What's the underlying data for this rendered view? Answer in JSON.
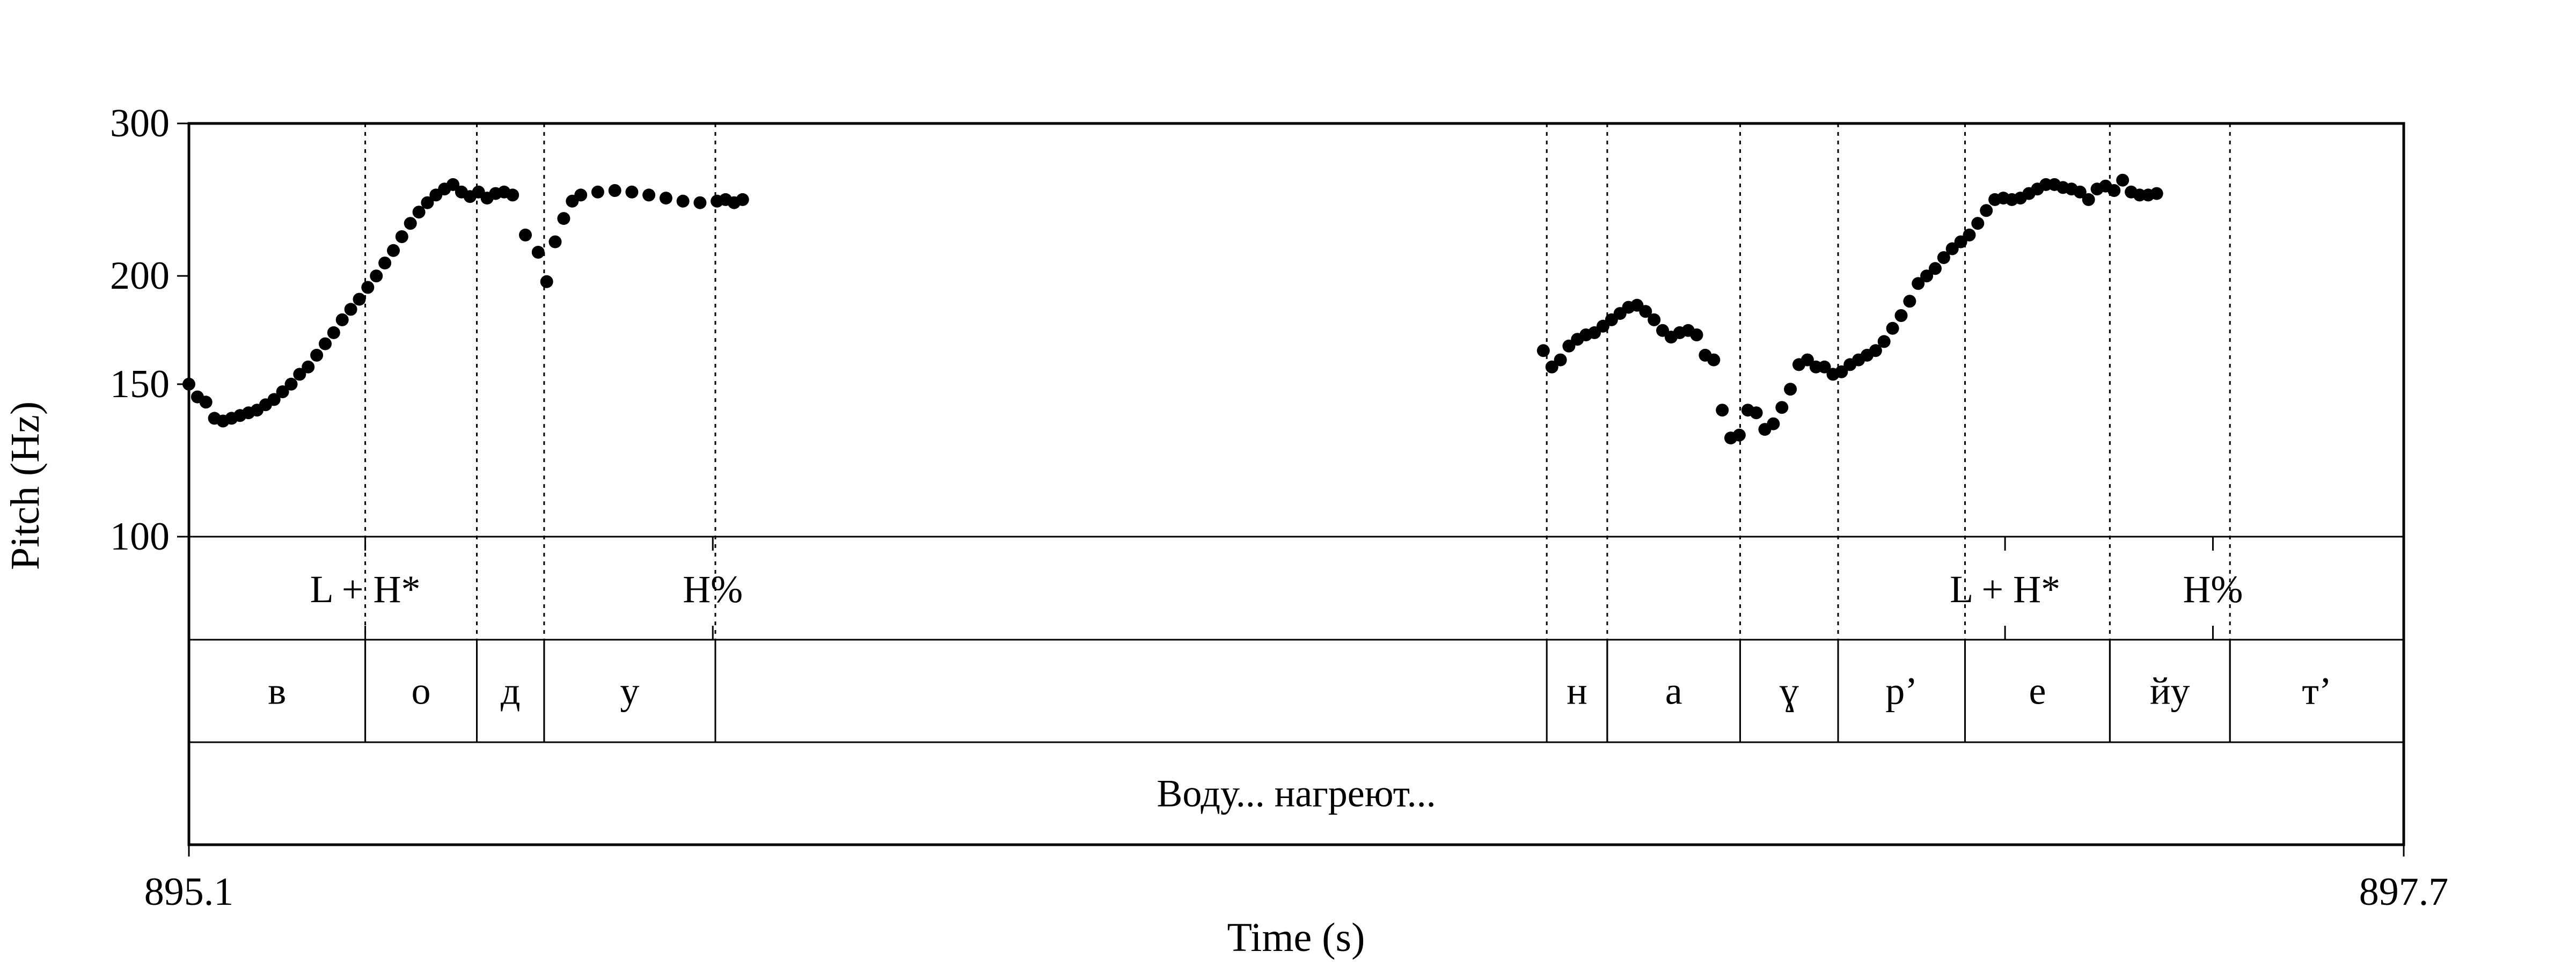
{
  "chart_data": {
    "type": "scatter",
    "xlabel": "Time (s)",
    "ylabel": "Pitch (Hz)",
    "xlim": [
      895.1,
      897.7
    ],
    "ylim": [
      100,
      300
    ],
    "y_scale": "log",
    "x_tick_labels": [
      "895.1",
      "897.7"
    ],
    "y_tick_labels": [
      "100",
      "150",
      "200",
      "300"
    ],
    "y_ticks": [
      100,
      150,
      200,
      300
    ],
    "grid": false,
    "series": [
      {
        "points": [
          [
            895.1,
            150
          ],
          [
            895.11,
            145
          ],
          [
            895.12,
            143
          ],
          [
            895.13,
            137
          ],
          [
            895.14,
            136
          ],
          [
            895.15,
            137
          ],
          [
            895.16,
            138
          ],
          [
            895.17,
            139
          ],
          [
            895.18,
            140
          ],
          [
            895.19,
            142
          ],
          [
            895.2,
            144
          ],
          [
            895.21,
            147
          ],
          [
            895.22,
            150
          ],
          [
            895.23,
            154
          ],
          [
            895.24,
            157
          ],
          [
            895.25,
            162
          ],
          [
            895.26,
            167
          ],
          [
            895.27,
            172
          ],
          [
            895.28,
            178
          ],
          [
            895.29,
            183
          ],
          [
            895.3,
            188
          ],
          [
            895.31,
            194
          ],
          [
            895.32,
            200
          ],
          [
            895.33,
            207
          ],
          [
            895.34,
            214
          ],
          [
            895.35,
            222
          ],
          [
            895.36,
            230
          ],
          [
            895.37,
            237
          ],
          [
            895.38,
            243
          ],
          [
            895.39,
            248
          ],
          [
            895.4,
            252
          ],
          [
            895.41,
            255
          ],
          [
            895.42,
            250
          ],
          [
            895.43,
            247
          ],
          [
            895.44,
            250
          ],
          [
            895.45,
            246
          ],
          [
            895.46,
            249
          ],
          [
            895.47,
            250
          ],
          [
            895.48,
            248
          ],
          [
            895.495,
            223
          ],
          [
            895.51,
            213
          ],
          [
            895.52,
            197
          ],
          [
            895.53,
            219
          ],
          [
            895.54,
            233
          ],
          [
            895.55,
            244
          ],
          [
            895.56,
            248
          ],
          [
            895.58,
            250
          ],
          [
            895.6,
            251
          ],
          [
            895.62,
            250
          ],
          [
            895.64,
            248
          ],
          [
            895.66,
            246
          ],
          [
            895.68,
            244
          ],
          [
            895.7,
            243
          ],
          [
            895.72,
            244
          ],
          [
            895.73,
            245
          ],
          [
            895.74,
            243
          ],
          [
            895.75,
            245
          ],
          [
            896.69,
            164
          ],
          [
            896.7,
            157
          ],
          [
            896.71,
            160
          ],
          [
            896.72,
            166
          ],
          [
            896.73,
            169
          ],
          [
            896.74,
            171
          ],
          [
            896.75,
            172
          ],
          [
            896.76,
            175
          ],
          [
            896.77,
            178
          ],
          [
            896.78,
            181
          ],
          [
            896.79,
            184
          ],
          [
            896.8,
            185
          ],
          [
            896.81,
            182
          ],
          [
            896.82,
            178
          ],
          [
            896.83,
            173
          ],
          [
            896.84,
            170
          ],
          [
            896.85,
            172
          ],
          [
            896.86,
            173
          ],
          [
            896.87,
            171
          ],
          [
            896.88,
            162
          ],
          [
            896.89,
            160
          ],
          [
            896.9,
            140
          ],
          [
            896.91,
            130
          ],
          [
            896.92,
            131
          ],
          [
            896.93,
            140
          ],
          [
            896.94,
            139
          ],
          [
            896.95,
            133
          ],
          [
            896.96,
            135
          ],
          [
            896.97,
            141
          ],
          [
            896.98,
            148
          ],
          [
            896.99,
            158
          ],
          [
            897.0,
            160
          ],
          [
            897.01,
            157
          ],
          [
            897.02,
            157
          ],
          [
            897.03,
            154
          ],
          [
            897.04,
            155
          ],
          [
            897.05,
            158
          ],
          [
            897.06,
            160
          ],
          [
            897.07,
            162
          ],
          [
            897.08,
            164
          ],
          [
            897.09,
            168
          ],
          [
            897.1,
            174
          ],
          [
            897.11,
            180
          ],
          [
            897.12,
            187
          ],
          [
            897.13,
            196
          ],
          [
            897.14,
            200
          ],
          [
            897.15,
            204
          ],
          [
            897.16,
            210
          ],
          [
            897.17,
            215
          ],
          [
            897.18,
            219
          ],
          [
            897.19,
            223
          ],
          [
            897.2,
            230
          ],
          [
            897.21,
            238
          ],
          [
            897.22,
            245
          ],
          [
            897.23,
            246
          ],
          [
            897.24,
            245
          ],
          [
            897.25,
            246
          ],
          [
            897.26,
            249
          ],
          [
            897.27,
            252
          ],
          [
            897.28,
            255
          ],
          [
            897.29,
            255
          ],
          [
            897.3,
            253
          ],
          [
            897.31,
            252
          ],
          [
            897.32,
            250
          ],
          [
            897.33,
            245
          ],
          [
            897.34,
            252
          ],
          [
            897.35,
            254
          ],
          [
            897.36,
            251
          ],
          [
            897.37,
            258
          ],
          [
            897.38,
            250
          ],
          [
            897.39,
            248
          ],
          [
            897.4,
            248
          ],
          [
            897.41,
            249
          ]
        ]
      }
    ],
    "tiers": [
      {
        "name": "tones",
        "type": "point",
        "marks": [
          {
            "t": 895.307,
            "text": "L + H*"
          },
          {
            "t": 895.715,
            "text": "H%"
          },
          {
            "t": 897.232,
            "text": "L + H*"
          },
          {
            "t": 897.476,
            "text": "H%"
          }
        ]
      },
      {
        "name": "segments",
        "type": "interval",
        "intervals": [
          {
            "start": 895.1,
            "end": 895.307,
            "text": "в"
          },
          {
            "start": 895.307,
            "end": 895.438,
            "text": "о"
          },
          {
            "start": 895.438,
            "end": 895.517,
            "text": "д"
          },
          {
            "start": 895.517,
            "end": 895.718,
            "text": "у"
          },
          {
            "start": 896.694,
            "end": 896.765,
            "text": "н"
          },
          {
            "start": 896.765,
            "end": 896.921,
            "text": "а"
          },
          {
            "start": 896.921,
            "end": 897.036,
            "text": "ɣ"
          },
          {
            "start": 897.036,
            "end": 897.185,
            "text": "р’"
          },
          {
            "start": 897.185,
            "end": 897.355,
            "text": "е"
          },
          {
            "start": 897.355,
            "end": 897.496,
            "text": "йу"
          },
          {
            "start": 897.496,
            "end": 897.7,
            "text": "т’"
          }
        ]
      },
      {
        "name": "words",
        "type": "interval",
        "intervals": [
          {
            "start": 895.1,
            "end": 897.7,
            "text": "Воду... нагреют..."
          }
        ]
      }
    ],
    "reference_lines": [
      895.307,
      895.438,
      895.517,
      895.718,
      896.694,
      896.765,
      896.921,
      897.036,
      897.185,
      897.355,
      897.496
    ]
  }
}
